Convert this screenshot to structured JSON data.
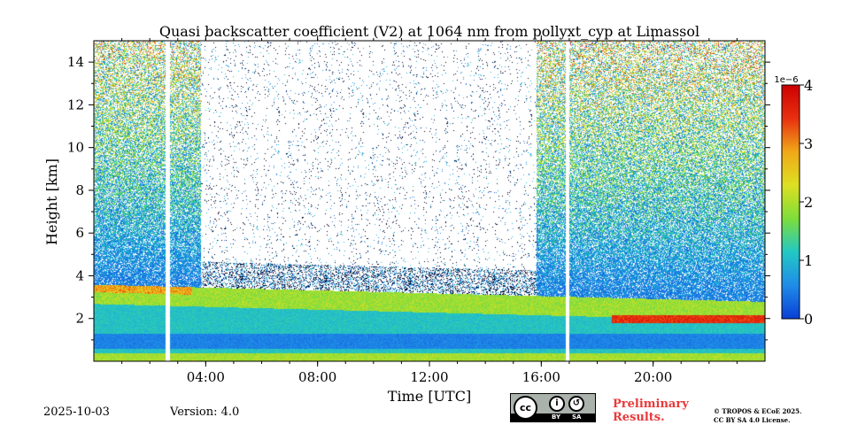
{
  "chart_data": {
    "type": "heatmap",
    "title": "Quasi backscatter coefficient (V2) at 1064 nm from pollyxt_cyp at Limassol",
    "xlabel": "Time [UTC]",
    "ylabel": "Height [km]",
    "xlim_hours": [
      0,
      24
    ],
    "ylim_km": [
      0,
      15
    ],
    "x_ticks": [
      {
        "value": 4,
        "label": "04:00"
      },
      {
        "value": 8,
        "label": "08:00"
      },
      {
        "value": 12,
        "label": "12:00"
      },
      {
        "value": 16,
        "label": "16:00"
      },
      {
        "value": 20,
        "label": "20:00"
      }
    ],
    "y_ticks": [
      {
        "value": 2,
        "label": "2"
      },
      {
        "value": 4,
        "label": "4"
      },
      {
        "value": 6,
        "label": "6"
      },
      {
        "value": 8,
        "label": "8"
      },
      {
        "value": 10,
        "label": "10"
      },
      {
        "value": 12,
        "label": "12"
      },
      {
        "value": 14,
        "label": "14"
      }
    ],
    "colorbar": {
      "range": [
        0,
        4
      ],
      "offset_label": "1e−6",
      "ticks": [
        {
          "value": 0,
          "label": "0"
        },
        {
          "value": 1,
          "label": "1"
        },
        {
          "value": 2,
          "label": "2"
        },
        {
          "value": 3,
          "label": "3"
        },
        {
          "value": 4,
          "label": "4"
        }
      ],
      "colors": [
        "#0a3fd6",
        "#1f8ce8",
        "#22c8c4",
        "#7edd3a",
        "#dde022",
        "#f0a818",
        "#e83010",
        "#cc0000"
      ]
    },
    "data_gaps_hours": [
      [
        2.55,
        2.7
      ],
      [
        16.85,
        17.0
      ]
    ],
    "night_signal_periods_hours": [
      [
        0,
        3.8
      ],
      [
        15.8,
        24
      ]
    ],
    "layers": [
      {
        "name": "boundary-layer-top",
        "from_hour": 0,
        "to_hour": 24,
        "height_km_start": 3.6,
        "height_km_end": 2.8,
        "value": 2.0
      },
      {
        "name": "elevated-aerosol-layer",
        "from_hour": 18.5,
        "to_hour": 24,
        "height_km": 2.0,
        "value": 3.6
      }
    ]
  },
  "footer": {
    "date": "2025-10-03",
    "version": "Version: 4.0",
    "preliminary": [
      "Preliminary",
      "Results."
    ],
    "copyright": [
      "© TROPOS & ECoE 2025.",
      "CC BY SA 4.0 License."
    ],
    "license_badge": {
      "cc": "cc",
      "by": "BY",
      "sa": "SA"
    }
  }
}
